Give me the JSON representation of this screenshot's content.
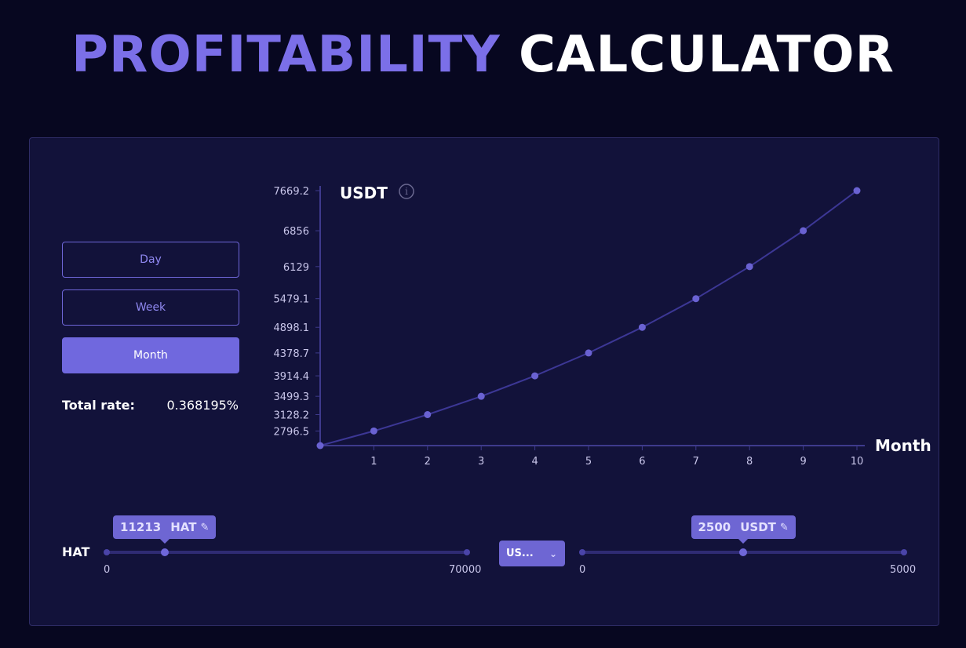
{
  "header": {
    "title_part1": "PROFITABILITY",
    "title_part2": "CALCULATOR"
  },
  "period": {
    "options": [
      "Day",
      "Week",
      "Month"
    ],
    "selected": "Month"
  },
  "total_rate": {
    "label": "Total rate:",
    "value": "0.368195%"
  },
  "chart_data": {
    "type": "line",
    "ylabel": "USDT",
    "xlabel": "Month",
    "x": [
      0,
      1,
      2,
      3,
      4,
      5,
      6,
      7,
      8,
      9,
      10
    ],
    "values": [
      2500,
      2796.5,
      3128.2,
      3499.3,
      3914.4,
      4378.7,
      4898.1,
      5479.1,
      6129,
      6856,
      7669.2
    ],
    "x_ticks": [
      "1",
      "2",
      "3",
      "4",
      "5",
      "6",
      "7",
      "8",
      "9",
      "10"
    ],
    "y_ticks": [
      "2796.5",
      "3128.2",
      "3499.3",
      "3914.4",
      "4378.7",
      "4898.1",
      "5479.1",
      "6129",
      "6856",
      "7669.2"
    ],
    "ylim": [
      2500,
      7669.2
    ],
    "xlim": [
      0,
      10
    ],
    "info_icon": "info-icon",
    "colors": {
      "line": "#3C3795",
      "point": "#6A62D2",
      "axis": "#3E3A8C"
    }
  },
  "hat_slider": {
    "label": "HAT",
    "value": "11213",
    "unit": "HAT",
    "value_number": 11213,
    "min": "0",
    "max": "70000",
    "min_number": 0,
    "max_number": 70000,
    "edit_icon": "pencil-icon"
  },
  "currency_select": {
    "value": "US...",
    "icon": "chevron-down-icon"
  },
  "usdt_slider": {
    "value": "2500",
    "unit": "USDT",
    "value_number": 2500,
    "min": "0",
    "max": "5000",
    "min_number": 0,
    "max_number": 5000,
    "edit_icon": "pencil-icon"
  },
  "colors": {
    "accent": "#7068DE",
    "background": "#070720",
    "panel": "#12123A"
  }
}
